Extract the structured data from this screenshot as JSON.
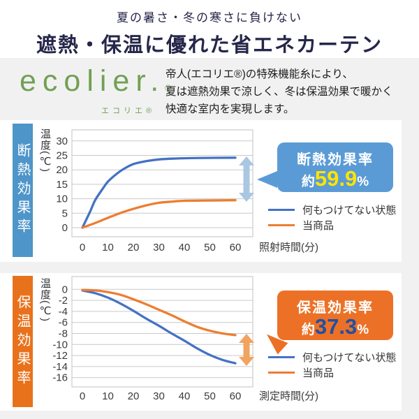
{
  "header": {
    "subtitle": "夏の暑さ・冬の寒さに負けない",
    "title": "遮熱・保温に優れた省エネカーテン"
  },
  "brand": {
    "logo_text": "ecolier.",
    "registered_mark": "®",
    "logo_ruby": "エコリエ®",
    "description_line1": "帝人(エコリエ®)の特殊機能糸により、",
    "description_line2": "夏は遮熱効果で涼しく、冬は保温効果で暖かく",
    "description_line3": "快適な室内を実現します。"
  },
  "colors": {
    "title_navy": "#252649",
    "logo_green": "#71a053",
    "band_blue": "#4e95c9",
    "band_orange": "#e8721c",
    "callout_blue": "#5b9bd5",
    "callout_orange": "#ec7126",
    "line_blue": "#4472c4",
    "line_orange": "#ed7d31",
    "value_yellow": "#ffe400",
    "value_blue": "#2150a3"
  },
  "chart_data": [
    {
      "type": "line",
      "section_label": "断熱効果率",
      "ylabel": "温度(℃)",
      "xlabel": "照射時間(分)",
      "xticks": [
        0,
        10,
        20,
        30,
        40,
        50,
        60
      ],
      "yticks": [
        30,
        25,
        20,
        15,
        10,
        5,
        0
      ],
      "ylim": [
        -2,
        33
      ],
      "xlim": [
        0,
        65
      ],
      "grid": true,
      "legend_position": "right",
      "arrow_color": "#a9c7e3",
      "series": [
        {
          "name": "何もつけてない状態",
          "color": "#4472c4",
          "points": [
            [
              0,
              0
            ],
            [
              3,
              5.5
            ],
            [
              5,
              9.5
            ],
            [
              8,
              13.5
            ],
            [
              10,
              15.9
            ],
            [
              13,
              18.3
            ],
            [
              16,
              20.2
            ],
            [
              20,
              22
            ],
            [
              25,
              23
            ],
            [
              30,
              23.6
            ],
            [
              36,
              23.9
            ],
            [
              45,
              24.1
            ],
            [
              60,
              24.2
            ]
          ]
        },
        {
          "name": "当商品",
          "color": "#ed7d31",
          "points": [
            [
              0,
              0
            ],
            [
              5,
              1.6
            ],
            [
              10,
              3.4
            ],
            [
              15,
              5.1
            ],
            [
              20,
              6.5
            ],
            [
              25,
              7.7
            ],
            [
              30,
              8.6
            ],
            [
              35,
              9
            ],
            [
              40,
              9.3
            ],
            [
              50,
              9.4
            ],
            [
              60,
              9.5
            ]
          ]
        }
      ],
      "callout": {
        "label": "断熱効果率",
        "prefix": "約",
        "value": "59.9",
        "unit": "%"
      }
    },
    {
      "type": "line",
      "section_label": "保温効果率",
      "ylabel": "温度(℃)",
      "xlabel": "測定時間(分)",
      "xticks": [
        0,
        10,
        20,
        30,
        40,
        50,
        60
      ],
      "yticks": [
        0,
        -2,
        -4,
        -6,
        -8,
        -10,
        -12,
        -14,
        -16
      ],
      "ylim": [
        -17.5,
        1.5
      ],
      "xlim": [
        0,
        65
      ],
      "grid": true,
      "legend_position": "right",
      "arrow_color": "#f2a35f",
      "series": [
        {
          "name": "何もつけてない状態",
          "color": "#4472c4",
          "points": [
            [
              0,
              -0.2
            ],
            [
              5,
              -0.7
            ],
            [
              10,
              -1.5
            ],
            [
              15,
              -2.6
            ],
            [
              20,
              -3.9
            ],
            [
              25,
              -5.3
            ],
            [
              30,
              -6.6
            ],
            [
              35,
              -8
            ],
            [
              40,
              -9.3
            ],
            [
              45,
              -10.7
            ],
            [
              50,
              -11.9
            ],
            [
              55,
              -12.8
            ],
            [
              60,
              -13.4
            ]
          ]
        },
        {
          "name": "当商品",
          "color": "#ed7d31",
          "points": [
            [
              0,
              -0.1
            ],
            [
              5,
              -0.2
            ],
            [
              10,
              -0.5
            ],
            [
              15,
              -1
            ],
            [
              20,
              -1.8
            ],
            [
              25,
              -2.7
            ],
            [
              30,
              -3.7
            ],
            [
              35,
              -4.7
            ],
            [
              40,
              -5.8
            ],
            [
              45,
              -6.8
            ],
            [
              50,
              -7.5
            ],
            [
              55,
              -8
            ],
            [
              60,
              -8.3
            ]
          ]
        }
      ],
      "callout": {
        "label": "保温効果率",
        "prefix": "約",
        "value": "37.3",
        "unit": "%"
      }
    }
  ]
}
